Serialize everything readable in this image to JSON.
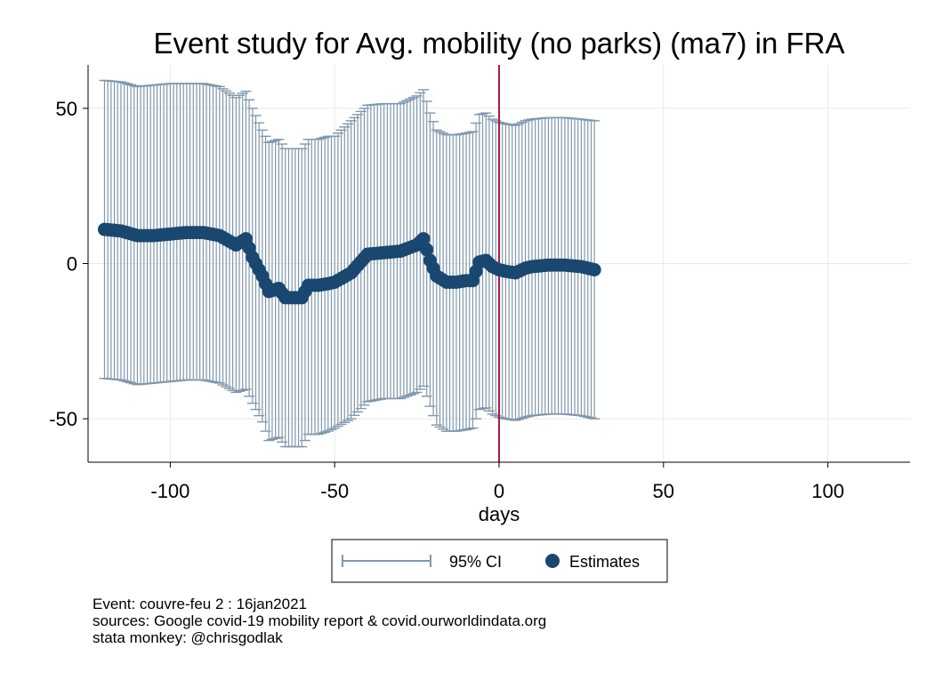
{
  "chart_data": {
    "type": "scatter",
    "title": "Event study for Avg. mobility (no parks) (ma7) in FRA",
    "xlabel": "days",
    "ylabel": "",
    "xlim": [
      -125,
      125
    ],
    "ylim": [
      -64,
      64
    ],
    "xticks": [
      -100,
      -50,
      0,
      50,
      100
    ],
    "yticks": [
      -50,
      0,
      50
    ],
    "event_line_x": 0,
    "grid": true,
    "legend": {
      "position": "bottom",
      "entries": [
        "95% CI",
        "Estimates"
      ]
    },
    "colors": {
      "ci": "#7f97ad",
      "estimate": "#1a476f",
      "event_line": "#b1193f",
      "grid": "#eaeaea"
    },
    "series": [
      {
        "name": "Estimates",
        "x": [
          -120,
          -115,
          -110,
          -105,
          -100,
          -95,
          -90,
          -85,
          -80,
          -77,
          -75,
          -72,
          -70,
          -67,
          -65,
          -60,
          -58,
          -55,
          -52,
          -50,
          -45,
          -40,
          -35,
          -30,
          -25,
          -23,
          -21,
          -19,
          -16,
          -13,
          -10,
          -8,
          -6,
          -4,
          -2,
          0,
          2,
          5,
          8,
          10,
          15,
          20,
          25,
          29
        ],
        "y": [
          11,
          10.5,
          9,
          9,
          9.5,
          10,
          10,
          9,
          6,
          8,
          2,
          -4,
          -9,
          -8,
          -11,
          -11,
          -7,
          -7,
          -6.5,
          -6,
          -3,
          3,
          3.5,
          4,
          6,
          8,
          1,
          -4,
          -6,
          -6,
          -5.5,
          -5.5,
          0.5,
          1,
          -1,
          -2,
          -2.5,
          -3,
          -1.5,
          -1,
          -0.5,
          -0.5,
          -1,
          -2
        ]
      },
      {
        "name": "95% CI",
        "x": [
          -120,
          -115,
          -110,
          -105,
          -100,
          -95,
          -90,
          -85,
          -80,
          -77,
          -75,
          -72,
          -70,
          -67,
          -65,
          -60,
          -58,
          -55,
          -52,
          -50,
          -45,
          -40,
          -35,
          -30,
          -25,
          -23,
          -21,
          -19,
          -16,
          -13,
          -10,
          -8,
          -6,
          -4,
          -2,
          0,
          2,
          5,
          8,
          10,
          15,
          20,
          25,
          29
        ],
        "lower": [
          -37,
          -37.5,
          -39,
          -38.5,
          -38,
          -37.5,
          -37.5,
          -38.5,
          -41.5,
          -40.5,
          -45,
          -51,
          -57,
          -56,
          -59,
          -59,
          -55,
          -55,
          -54,
          -53,
          -50,
          -44.5,
          -43.5,
          -43.5,
          -41.5,
          -39.5,
          -46,
          -52,
          -54,
          -54,
          -53.5,
          -53,
          -47,
          -46.5,
          -48.5,
          -49.5,
          -50,
          -50.5,
          -49.5,
          -49,
          -48.5,
          -48.5,
          -49,
          -50
        ],
        "upper": [
          59,
          58.5,
          57,
          57.5,
          58,
          58,
          58,
          57,
          53.5,
          55.5,
          50,
          43,
          39,
          40,
          37,
          37,
          40,
          40,
          41,
          41,
          46,
          51,
          51.5,
          51.5,
          54,
          56,
          48.5,
          43,
          41.5,
          41.5,
          42,
          42.5,
          48,
          48.5,
          46.5,
          45.5,
          45,
          44.5,
          46,
          46.5,
          47,
          47,
          46.5,
          46
        ]
      }
    ]
  },
  "notes": {
    "line1": "Event: couvre-feu 2 : 16jan2021",
    "line2": "sources: Google covid-19 mobility report & covid.ourworldindata.org",
    "line3": "stata monkey: @chrisgodlak"
  }
}
